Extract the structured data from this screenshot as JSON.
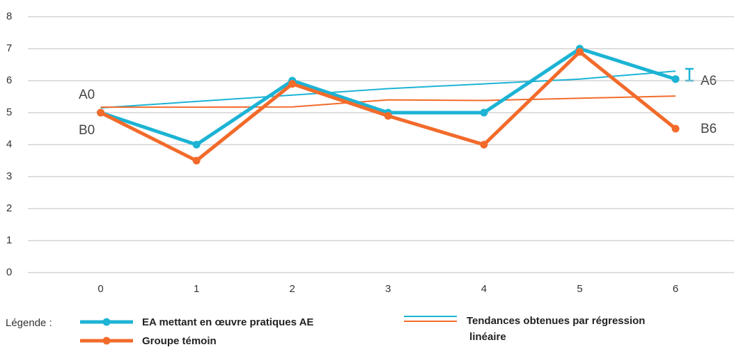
{
  "chart_data": {
    "type": "line",
    "x": [
      0,
      1,
      2,
      3,
      4,
      5,
      6
    ],
    "xlim": [
      -0.76,
      6.61
    ],
    "xticks": [
      0,
      1,
      2,
      3,
      4,
      5,
      6
    ],
    "ylim": [
      0,
      8
    ],
    "yticks": [
      0,
      1,
      2,
      3,
      4,
      5,
      6,
      7,
      8
    ],
    "grid": true,
    "series": [
      {
        "name": "EA mettant en œuvre pratiques AE",
        "color": "#1cb3d4",
        "values": [
          5,
          4,
          6,
          5,
          5,
          7,
          6.05
        ]
      },
      {
        "name": "Groupe témoin",
        "color": "#f26b2b",
        "values": [
          5,
          3.5,
          5.9,
          4.9,
          4,
          6.9,
          4.5
        ]
      }
    ],
    "trend": {
      "name": "Tendances obtenues par régression linéaire",
      "series": [
        {
          "color": "#1cb3d4",
          "values": [
            5.15,
            5.35,
            5.55,
            5.75,
            5.9,
            6.05,
            6.3
          ]
        },
        {
          "color": "#f26b2b",
          "values": [
            5.17,
            5.17,
            5.18,
            5.4,
            5.38,
            5.45,
            5.52
          ]
        }
      ]
    },
    "legend_title": "Légende :",
    "annotations": [
      "A0",
      "B0",
      "A6",
      "B6"
    ]
  }
}
